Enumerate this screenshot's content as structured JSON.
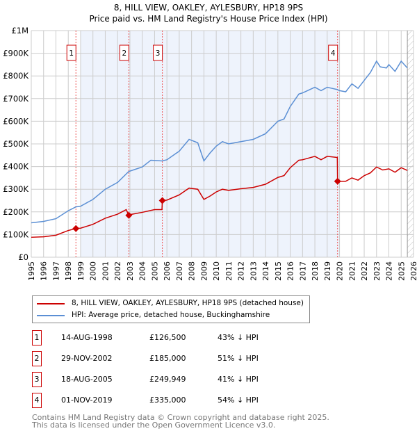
{
  "chart_data": {
    "type": "line",
    "title": "8, HILL VIEW, OAKLEY, AYLESBURY, HP18 9PS",
    "subtitle": "Price paid vs. HM Land Registry's House Price Index (HPI)",
    "xlim": [
      1995,
      2026
    ],
    "ylim": [
      0,
      1000000
    ],
    "y_ticks": [
      {
        "v": 0,
        "l": "£0"
      },
      {
        "v": 100000,
        "l": "£100K"
      },
      {
        "v": 200000,
        "l": "£200K"
      },
      {
        "v": 300000,
        "l": "£300K"
      },
      {
        "v": 400000,
        "l": "£400K"
      },
      {
        "v": 500000,
        "l": "£500K"
      },
      {
        "v": 600000,
        "l": "£600K"
      },
      {
        "v": 700000,
        "l": "£700K"
      },
      {
        "v": 800000,
        "l": "£800K"
      },
      {
        "v": 900000,
        "l": "£900K"
      },
      {
        "v": 1000000,
        "l": "£1M"
      }
    ],
    "x_ticks": [
      "1995",
      "1996",
      "1997",
      "1998",
      "1999",
      "2000",
      "2001",
      "2002",
      "2003",
      "2004",
      "2005",
      "2006",
      "2007",
      "2008",
      "2009",
      "2010",
      "2011",
      "2012",
      "2013",
      "2014",
      "2015",
      "2016",
      "2017",
      "2018",
      "2019",
      "2020",
      "2021",
      "2022",
      "2023",
      "2024",
      "2025",
      "2026"
    ],
    "grid": true,
    "shaded_range": [
      1999,
      2020
    ],
    "forecast_hatch_from": 2025.5,
    "series": [
      {
        "name": "8, HILL VIEW, OAKLEY, AYLESBURY, HP18 9PS (detached house)",
        "color": "#cc0000",
        "x": [
          1995,
          1996,
          1997,
          1998,
          1998.62,
          1999,
          2000,
          2001,
          2002,
          2002.7,
          2002.91,
          2003,
          2004,
          2005,
          2005.6,
          2005.63,
          2006,
          2007,
          2007.8,
          2008.5,
          2009,
          2009.5,
          2010,
          2010.5,
          2011,
          2012,
          2013,
          2014,
          2015,
          2015.5,
          2016,
          2016.7,
          2017,
          2018,
          2018.5,
          2019,
          2019.82,
          2019.84,
          2020.5,
          2021,
          2021.5,
          2022,
          2022.5,
          2023,
          2023.5,
          2024,
          2024.5,
          2025,
          2025.5
        ],
        "y": [
          88,
          90,
          97,
          118,
          126.5,
          128,
          145,
          172,
          190,
          210,
          185,
          188,
          198,
          210,
          210,
          250,
          252,
          275,
          305,
          300,
          255,
          270,
          288,
          300,
          295,
          302,
          308,
          322,
          352,
          360,
          395,
          428,
          430,
          445,
          430,
          445,
          440,
          335,
          335,
          350,
          340,
          360,
          372,
          398,
          385,
          390,
          375,
          395,
          383
        ]
      },
      {
        "name": "HPI: Average price, detached house, Buckinghamshire",
        "color": "#5b8fd4",
        "x": [
          1995,
          1996,
          1997,
          1998,
          1998.62,
          1999,
          2000,
          2001,
          2002,
          2002.9,
          2003,
          2004,
          2004.7,
          2005.6,
          2006,
          2007,
          2007.8,
          2008.5,
          2009,
          2009.5,
          2010,
          2010.5,
          2011,
          2012,
          2013,
          2014,
          2015,
          2015.5,
          2016,
          2016.7,
          2017,
          2018,
          2018.5,
          2019,
          2019.8,
          2020,
          2020.5,
          2021,
          2021.5,
          2022,
          2022.5,
          2023,
          2023.3,
          2023.8,
          2024,
          2024.5,
          2025,
          2025.5
        ],
        "y": [
          152,
          158,
          170,
          205,
          222,
          225,
          255,
          300,
          330,
          378,
          380,
          398,
          428,
          425,
          430,
          468,
          520,
          505,
          425,
          460,
          490,
          510,
          500,
          510,
          520,
          545,
          600,
          610,
          665,
          720,
          725,
          750,
          735,
          750,
          740,
          735,
          730,
          765,
          745,
          780,
          815,
          865,
          840,
          835,
          850,
          820,
          865,
          835
        ]
      }
    ],
    "sales": [
      {
        "n": "1",
        "x": 1998.62,
        "y": 126.5,
        "date": "14-AUG-1998",
        "price": "£126,500",
        "hpi": "43% ↓ HPI"
      },
      {
        "n": "2",
        "x": 2002.91,
        "y": 185,
        "date": "29-NOV-2002",
        "price": "£185,000",
        "hpi": "51% ↓ HPI"
      },
      {
        "n": "3",
        "x": 2005.63,
        "y": 249.9,
        "date": "18-AUG-2005",
        "price": "£249,949",
        "hpi": "41% ↓ HPI"
      },
      {
        "n": "4",
        "x": 2019.84,
        "y": 335,
        "date": "01-NOV-2019",
        "price": "£335,000",
        "hpi": "54% ↓ HPI"
      }
    ]
  },
  "footer": {
    "line1": "Contains HM Land Registry data © Crown copyright and database right 2025.",
    "line2": "This data is licensed under the Open Government Licence v3.0."
  }
}
